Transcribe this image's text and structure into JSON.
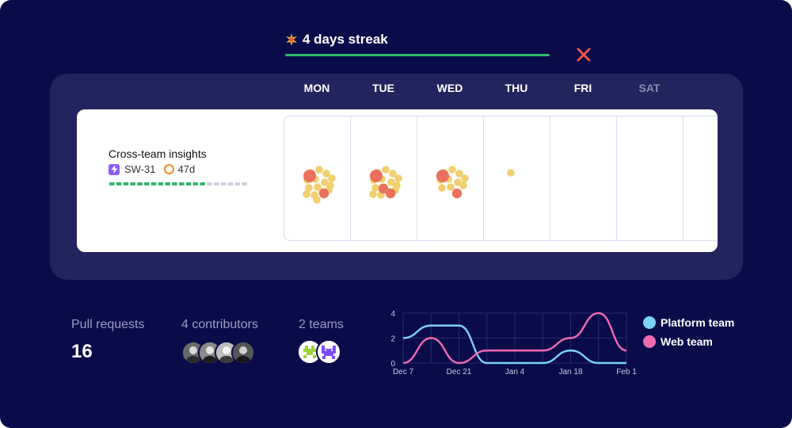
{
  "streak": {
    "label": "4 days streak",
    "color": "#2eb86b"
  },
  "days": [
    "MON",
    "TUE",
    "WED",
    "THU",
    "FRI",
    "SAT"
  ],
  "project": {
    "title": "Cross-team insights",
    "ticket": "SW-31",
    "age": "47d",
    "progress": {
      "done": 14,
      "total": 20
    }
  },
  "activity": [
    {
      "day": "MON",
      "small": 15,
      "big": 2
    },
    {
      "day": "TUE",
      "small": 14,
      "big": 3
    },
    {
      "day": "WED",
      "small": 10,
      "big": 2
    },
    {
      "day": "THU",
      "small": 1,
      "big": 0
    }
  ],
  "stats": {
    "pull_requests_label": "Pull requests",
    "pull_requests_value": "16",
    "contributors_label": "4 contributors",
    "teams_label": "2 teams"
  },
  "chart_data": {
    "type": "line",
    "x": [
      "Dec 7",
      "Dec 14",
      "Dec 21",
      "Dec 28",
      "Jan 4",
      "Jan 11",
      "Jan 18",
      "Jan 25",
      "Feb 1"
    ],
    "xtick_labels": [
      "Dec 7",
      "Dec 21",
      "Jan 4",
      "Jan 18",
      "Feb 1"
    ],
    "ylim": [
      0,
      4
    ],
    "yticks": [
      0,
      2,
      4
    ],
    "series": [
      {
        "name": "Platform team",
        "color": "#7dd3f5",
        "values": [
          2,
          3,
          3,
          0,
          0,
          0,
          1,
          0,
          0
        ]
      },
      {
        "name": "Web team",
        "color": "#f06ab0",
        "values": [
          0,
          2,
          0,
          1,
          1,
          1,
          2,
          4,
          1
        ]
      }
    ]
  }
}
